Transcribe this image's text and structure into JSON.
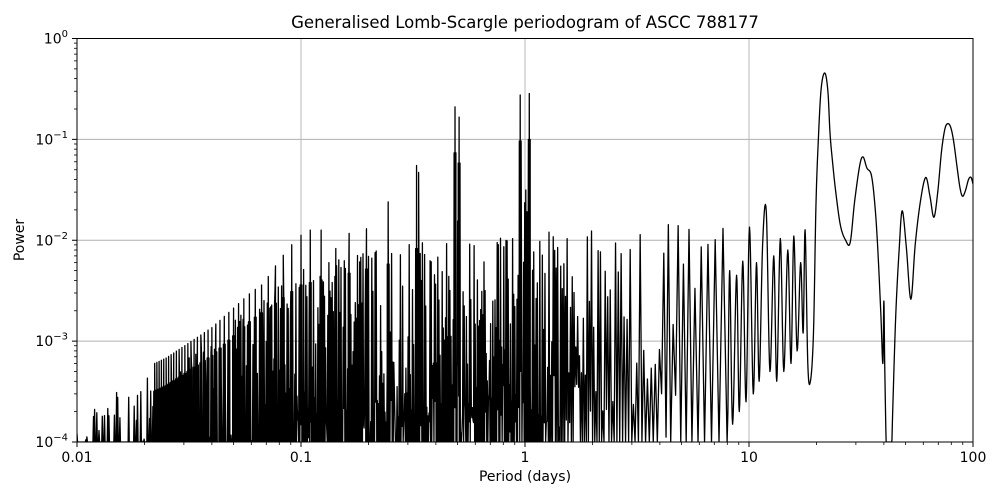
{
  "figure": {
    "background": "#ffffff",
    "plot_background": "#ffffff",
    "line_color": "#000000",
    "grid_color": "#b0b0b0",
    "spine_color": "#000000",
    "tick_color": "#000000"
  },
  "chart_data": {
    "type": "line",
    "title": "Generalised Lomb-Scargle periodogram of ASCC 788177",
    "xlabel": "Period (days)",
    "ylabel": "Power",
    "x_scale": "log",
    "y_scale": "log",
    "xlim": [
      0.01,
      100
    ],
    "ylim": [
      0.0001,
      1
    ],
    "grid": true,
    "legend": false,
    "x_ticks": [
      {
        "value": 0.01,
        "label": "0.01"
      },
      {
        "value": 0.1,
        "label": "0.1"
      },
      {
        "value": 1,
        "label": "1"
      },
      {
        "value": 10,
        "label": "10"
      },
      {
        "value": 100,
        "label": "100"
      }
    ],
    "y_ticks": [
      {
        "value": 1,
        "base": "10",
        "exp": "0"
      },
      {
        "value": 0.1,
        "base": "10",
        "exp": "−1"
      },
      {
        "value": 0.01,
        "base": "10",
        "exp": "−2"
      },
      {
        "value": 0.001,
        "base": "10",
        "exp": "−3"
      },
      {
        "value": 0.0001,
        "base": "10",
        "exp": "−4"
      }
    ],
    "main_peaks": [
      {
        "period_days": 21.8,
        "power": 0.455
      },
      {
        "period_days": 1.045,
        "power": 0.285
      },
      {
        "period_days": 0.952,
        "power": 0.275
      },
      {
        "period_days": 0.487,
        "power": 0.21
      },
      {
        "period_days": 77.0,
        "power": 0.143
      },
      {
        "period_days": 32.3,
        "power": 0.067
      },
      {
        "period_days": 0.328,
        "power": 0.055
      }
    ],
    "alias_peaks": [
      {
        "period": 0.952,
        "power": 0.275
      },
      {
        "period": 1.045,
        "power": 0.285
      },
      {
        "period": 0.487,
        "power": 0.21
      },
      {
        "period": 0.508,
        "power": 0.166
      },
      {
        "period": 0.328,
        "power": 0.055
      },
      {
        "period": 0.335,
        "power": 0.047
      },
      {
        "period": 0.245,
        "power": 0.024
      },
      {
        "period": 0.196,
        "power": 0.013
      },
      {
        "period": 0.164,
        "power": 0.0117
      },
      {
        "period": 0.143,
        "power": 0.007
      },
      {
        "period": 0.123,
        "power": 0.0126
      },
      {
        "period": 0.11,
        "power": 0.0126
      },
      {
        "period": 0.1,
        "power": 0.0112
      }
    ],
    "alias_comb": {
      "n_start": 11,
      "n_end": 45,
      "base_height": 0.0115,
      "decay_per_n": 0.105
    },
    "noise_envelope": [
      [
        0.01,
        0.00016
      ],
      [
        0.016,
        0.00025
      ],
      [
        0.025,
        0.0004
      ],
      [
        0.04,
        0.0008
      ],
      [
        0.06,
        0.0018
      ],
      [
        0.08,
        0.0028
      ],
      [
        0.1,
        0.004
      ],
      [
        0.15,
        0.005
      ],
      [
        0.25,
        0.0065
      ],
      [
        0.4,
        0.0075
      ],
      [
        0.7,
        0.008
      ],
      [
        1.0,
        0.0085
      ],
      [
        1.5,
        0.01
      ],
      [
        2.5,
        0.0105
      ],
      [
        4.0,
        0.011
      ],
      [
        6.0,
        0.012
      ],
      [
        8.0,
        0.0125
      ]
    ],
    "clusters": [
      {
        "center_period": 1.0,
        "height": 0.035,
        "sigma_dex": 0.02
      },
      {
        "center_period": 0.5,
        "height": 0.018,
        "sigma_dex": 0.012
      },
      {
        "center_period": 0.333,
        "height": 0.0035,
        "sigma_dex": 0.008
      }
    ],
    "smooth_section": [
      [
        8.05,
        0.0002
      ],
      [
        8.2,
        0.005
      ],
      [
        8.45,
        0.00015
      ],
      [
        8.8,
        0.0045
      ],
      [
        9.05,
        0.0002
      ],
      [
        9.38,
        0.0062
      ],
      [
        9.7,
        0.00025
      ],
      [
        10.05,
        0.0135
      ],
      [
        10.45,
        0.0003
      ],
      [
        10.8,
        0.006
      ],
      [
        11.1,
        0.0004
      ],
      [
        11.5,
        0.009
      ],
      [
        11.95,
        0.019
      ],
      [
        12.4,
        0.0005
      ],
      [
        12.9,
        0.007
      ],
      [
        13.3,
        0.0004
      ],
      [
        13.8,
        0.0104
      ],
      [
        14.3,
        0.0005
      ],
      [
        14.9,
        0.008
      ],
      [
        15.4,
        0.0006
      ],
      [
        15.85,
        0.011
      ],
      [
        16.4,
        0.0008
      ],
      [
        17.0,
        0.006
      ],
      [
        17.45,
        0.0012
      ],
      [
        17.8,
        0.0127
      ],
      [
        18.3,
        0.0006
      ],
      [
        18.8,
        0.0004
      ],
      [
        19.4,
        0.0012
      ],
      [
        19.9,
        0.022
      ],
      [
        20.4,
        0.1
      ],
      [
        21.0,
        0.32
      ],
      [
        21.8,
        0.455
      ],
      [
        22.5,
        0.3
      ],
      [
        23.0,
        0.115
      ],
      [
        23.6,
        0.06
      ],
      [
        24.4,
        0.03
      ],
      [
        25.6,
        0.014
      ],
      [
        27.0,
        0.01
      ],
      [
        28.3,
        0.0095
      ],
      [
        29.6,
        0.024
      ],
      [
        31.2,
        0.055
      ],
      [
        32.3,
        0.067
      ],
      [
        33.6,
        0.052
      ],
      [
        35.2,
        0.044
      ],
      [
        36.5,
        0.022
      ],
      [
        37.6,
        0.008
      ],
      [
        38.8,
        0.0018
      ],
      [
        39.6,
        0.0006
      ],
      [
        40.0,
        0.0025
      ],
      [
        40.4,
        0.0005
      ],
      [
        41.2,
        6e-05
      ],
      [
        42.5,
        2e-05
      ],
      [
        43.8,
        0.0002
      ],
      [
        45.2,
        0.0018
      ],
      [
        46.8,
        0.008
      ],
      [
        48.3,
        0.0196
      ],
      [
        50.4,
        0.0085
      ],
      [
        52.8,
        0.0026
      ],
      [
        55.2,
        0.009
      ],
      [
        58.2,
        0.024
      ],
      [
        61.5,
        0.042
      ],
      [
        64.3,
        0.027
      ],
      [
        66.9,
        0.0169
      ],
      [
        69.6,
        0.03
      ],
      [
        72.3,
        0.075
      ],
      [
        74.8,
        0.125
      ],
      [
        77.0,
        0.143
      ],
      [
        79.5,
        0.132
      ],
      [
        82.0,
        0.095
      ],
      [
        85.0,
        0.052
      ],
      [
        87.5,
        0.033
      ],
      [
        89.8,
        0.0273
      ],
      [
        92.5,
        0.031
      ],
      [
        95.5,
        0.04
      ],
      [
        98.0,
        0.042
      ],
      [
        100.0,
        0.036
      ]
    ],
    "baseline_days": 90,
    "noise_seed": 7
  }
}
